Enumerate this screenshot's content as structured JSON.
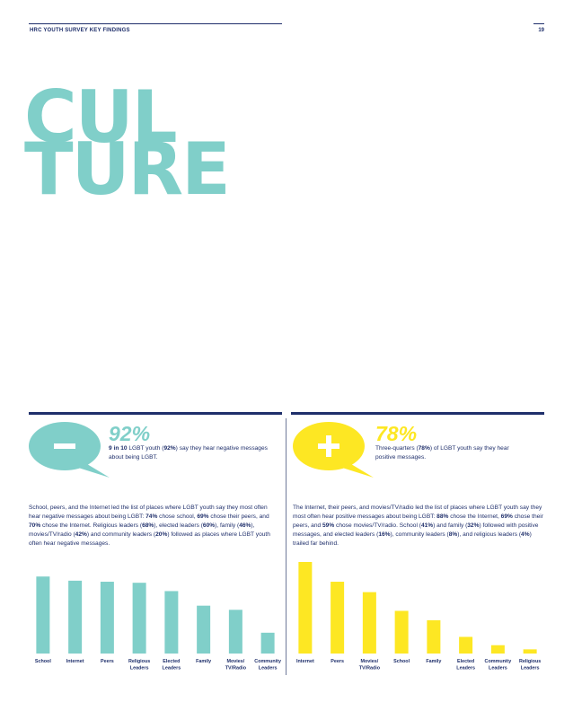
{
  "header": {
    "label": "HRC YOUTH SURVEY KEY FINDINGS",
    "page_number": "19"
  },
  "headline": {
    "line1": "CUL",
    "line2": "TURE"
  },
  "negative": {
    "sign": "–",
    "percent": "92%",
    "note": [
      {
        "t": "9 in 10",
        "b": true
      },
      {
        "t": " LGBT youth (",
        "b": false
      },
      {
        "t": "92%",
        "b": true
      },
      {
        "t": ") say they hear negative messages about being LGBT.",
        "b": false
      }
    ],
    "paragraph": [
      {
        "t": "School, peers, and the Internet led the list of places where LGBT youth say they most often hear negative messages about being LGBT: ",
        "b": false
      },
      {
        "t": "74%",
        "b": true
      },
      {
        "t": " chose school, ",
        "b": false
      },
      {
        "t": "69%",
        "b": true
      },
      {
        "t": " chose their peers, and ",
        "b": false
      },
      {
        "t": "70%",
        "b": true
      },
      {
        "t": " chose the Internet. Religious leaders (",
        "b": false
      },
      {
        "t": "68%",
        "b": true
      },
      {
        "t": "), elected leaders (",
        "b": false
      },
      {
        "t": "60%",
        "b": true
      },
      {
        "t": "), family (",
        "b": false
      },
      {
        "t": "46%",
        "b": true
      },
      {
        "t": "), movies/TV/radio (",
        "b": false
      },
      {
        "t": "42%",
        "b": true
      },
      {
        "t": ") and community leaders (",
        "b": false
      },
      {
        "t": "20%",
        "b": true
      },
      {
        "t": ") followed as places where LGBT youth often hear negative messages.",
        "b": false
      }
    ]
  },
  "positive": {
    "sign": "+",
    "percent": "78%",
    "note": [
      {
        "t": "Three-quarters (",
        "b": false
      },
      {
        "t": "78%",
        "b": true
      },
      {
        "t": ") of LGBT youth say they hear positive messages.",
        "b": false
      }
    ],
    "paragraph": [
      {
        "t": "The Internet, their peers, and movies/TV/radio led the list of places where LGBT youth say they most often hear positive messages about being LGBT: ",
        "b": false
      },
      {
        "t": "88%",
        "b": true
      },
      {
        "t": " chose the Internet, ",
        "b": false
      },
      {
        "t": "69%",
        "b": true
      },
      {
        "t": " chose their peers, and ",
        "b": false
      },
      {
        "t": "59%",
        "b": true
      },
      {
        "t": " chose movies/TV/radio. School (",
        "b": false
      },
      {
        "t": "41%",
        "b": true
      },
      {
        "t": ") and family (",
        "b": false
      },
      {
        "t": "32%",
        "b": true
      },
      {
        "t": ") followed with positive messages, and elected leaders (",
        "b": false
      },
      {
        "t": "16%",
        "b": true
      },
      {
        "t": "), community leaders (",
        "b": false
      },
      {
        "t": "8%",
        "b": true
      },
      {
        "t": "), and religious leaders (",
        "b": false
      },
      {
        "t": "4%",
        "b": true
      },
      {
        "t": ") trailed far behind.",
        "b": false
      }
    ]
  },
  "colors": {
    "navy": "#1f2f6b",
    "teal": "#80cfc9",
    "yellow": "#fde723"
  },
  "chart_data": [
    {
      "type": "bar",
      "title": "",
      "categories": [
        "School",
        "Internet",
        "Peers",
        "Religious\nLeaders",
        "Elected\nLeaders",
        "Family",
        "Movies/\nTV/Radio",
        "Community\nLeaders"
      ],
      "values": [
        74,
        70,
        69,
        68,
        60,
        46,
        42,
        20
      ],
      "ylim": [
        0,
        88
      ],
      "color": "#80cfc9"
    },
    {
      "type": "bar",
      "title": "",
      "categories": [
        "Internet",
        "Peers",
        "Movies/\nTV/Radio",
        "School",
        "Family",
        "Elected\nLeaders",
        "Community\nLeaders",
        "Religious\nLeaders"
      ],
      "values": [
        88,
        69,
        59,
        41,
        32,
        16,
        8,
        4
      ],
      "ylim": [
        0,
        88
      ],
      "color": "#fde723"
    }
  ]
}
